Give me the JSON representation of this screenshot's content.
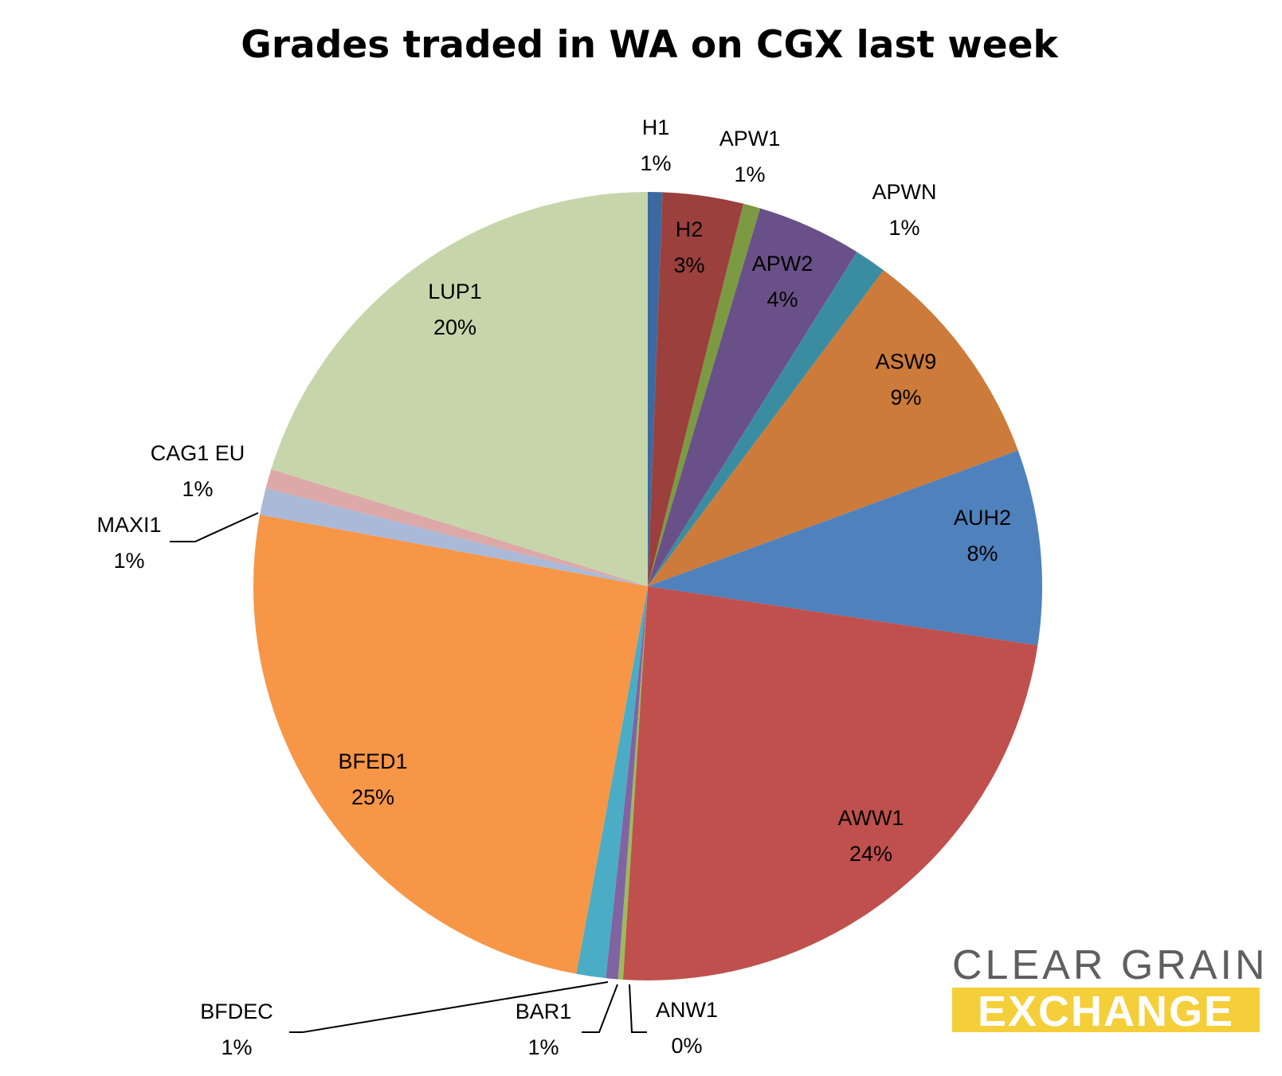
{
  "chart_data": {
    "type": "pie",
    "title": "Grades traded in WA on CGX last week",
    "start_angle_deg": 0,
    "direction": "clockwise",
    "slices": [
      {
        "name": "H1",
        "value": 0.6,
        "label": "1%",
        "color": "#3b6aa0"
      },
      {
        "name": "H2",
        "value": 3.3,
        "label": "3%",
        "color": "#9b403d"
      },
      {
        "name": "APW1",
        "value": 0.7,
        "label": "1%",
        "color": "#7c9a41"
      },
      {
        "name": "APW2",
        "value": 4.3,
        "label": "4%",
        "color": "#6a5088"
      },
      {
        "name": "APWN",
        "value": 1.3,
        "label": "1%",
        "color": "#3a8da1"
      },
      {
        "name": "ASW9",
        "value": 9.2,
        "label": "9%",
        "color": "#cc7b3a"
      },
      {
        "name": "AUH2",
        "value": 8.0,
        "label": "8%",
        "color": "#4f81bd"
      },
      {
        "name": "AWW1",
        "value": 23.6,
        "label": "24%",
        "color": "#c0504d"
      },
      {
        "name": "ANW1",
        "value": 0.2,
        "label": "0%",
        "color": "#9bbb59"
      },
      {
        "name": "BAR1",
        "value": 0.5,
        "label": "1%",
        "color": "#8064a2"
      },
      {
        "name": "BFDEC",
        "value": 1.2,
        "label": "1%",
        "color": "#4bacc6"
      },
      {
        "name": "BFED1",
        "value": 25.0,
        "label": "25%",
        "color": "#f79646"
      },
      {
        "name": "MAXI1",
        "value": 1.1,
        "label": "1%",
        "color": "#aab9d8"
      },
      {
        "name": "CAG1 EU",
        "value": 0.8,
        "label": "1%",
        "color": "#dca9a8"
      },
      {
        "name": "LUP1",
        "value": 20.2,
        "label": "20%",
        "color": "#c6d6aa"
      }
    ]
  },
  "logo": {
    "line1": "CLEAR GRAIN",
    "line2": "EXCHANGE",
    "accent_color": "#f5cf3a",
    "text_color": "#5f5f5f"
  }
}
